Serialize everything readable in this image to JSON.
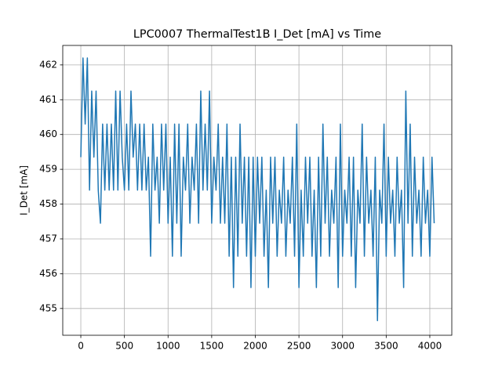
{
  "chart_data": {
    "type": "line",
    "title": "LPC0007 ThermalTest1B I_Det [mA] vs Time",
    "ylabel": "I_Det [mA]",
    "color": "#1f77b4",
    "grid": true,
    "xlim": [
      -207,
      4252
    ],
    "ylim": [
      454.23,
      462.56
    ],
    "xticks": [
      0,
      500,
      1000,
      1500,
      2000,
      2500,
      3000,
      3500,
      4000
    ],
    "yticks": [
      455,
      456,
      457,
      458,
      459,
      460,
      461,
      462
    ],
    "x": [
      0,
      25,
      50,
      75,
      100,
      125,
      150,
      175,
      200,
      225,
      250,
      275,
      300,
      325,
      350,
      375,
      400,
      425,
      450,
      475,
      500,
      525,
      550,
      575,
      600,
      625,
      650,
      675,
      700,
      725,
      750,
      775,
      800,
      825,
      850,
      875,
      900,
      925,
      950,
      975,
      1000,
      1025,
      1050,
      1075,
      1100,
      1125,
      1150,
      1175,
      1200,
      1225,
      1250,
      1275,
      1300,
      1325,
      1350,
      1375,
      1400,
      1425,
      1450,
      1475,
      1500,
      1525,
      1550,
      1575,
      1600,
      1625,
      1650,
      1675,
      1700,
      1725,
      1750,
      1775,
      1800,
      1825,
      1850,
      1875,
      1900,
      1925,
      1950,
      1975,
      2000,
      2025,
      2050,
      2075,
      2100,
      2125,
      2150,
      2175,
      2200,
      2225,
      2250,
      2275,
      2300,
      2325,
      2350,
      2375,
      2400,
      2425,
      2450,
      2475,
      2500,
      2525,
      2550,
      2575,
      2600,
      2625,
      2650,
      2675,
      2700,
      2725,
      2750,
      2775,
      2800,
      2825,
      2850,
      2875,
      2900,
      2925,
      2950,
      2975,
      3000,
      3025,
      3050,
      3075,
      3100,
      3125,
      3150,
      3175,
      3200,
      3225,
      3250,
      3275,
      3300,
      3325,
      3350,
      3375,
      3400,
      3425,
      3450,
      3475,
      3500,
      3525,
      3550,
      3575,
      3600,
      3625,
      3650,
      3675,
      3700,
      3725,
      3750,
      3775,
      3800,
      3825,
      3850,
      3875,
      3900,
      3925,
      3950,
      3975,
      4000,
      4025,
      4050
    ],
    "values": [
      459.35,
      462.2,
      460.3,
      462.2,
      458.4,
      461.25,
      459.35,
      461.25,
      458.4,
      457.45,
      460.3,
      458.4,
      460.3,
      458.4,
      460.3,
      458.4,
      461.25,
      458.4,
      461.25,
      459.35,
      458.4,
      460.3,
      458.4,
      461.25,
      459.35,
      460.3,
      458.4,
      460.3,
      458.4,
      460.3,
      458.4,
      459.35,
      456.5,
      460.3,
      458.4,
      459.35,
      457.45,
      460.3,
      458.4,
      460.3,
      457.45,
      459.35,
      456.5,
      460.3,
      457.45,
      460.3,
      456.5,
      459.35,
      458.4,
      460.3,
      457.45,
      459.35,
      458.4,
      460.3,
      457.45,
      461.25,
      458.4,
      460.3,
      458.4,
      461.25,
      457.45,
      459.35,
      458.4,
      460.3,
      457.45,
      459.35,
      457.45,
      460.3,
      456.5,
      459.35,
      455.6,
      459.35,
      456.5,
      460.3,
      457.45,
      459.35,
      456.5,
      459.35,
      455.6,
      459.35,
      456.5,
      459.35,
      457.45,
      459.35,
      456.5,
      458.4,
      455.6,
      459.35,
      457.45,
      459.35,
      456.5,
      458.4,
      457.45,
      459.35,
      456.5,
      458.4,
      457.45,
      459.35,
      456.5,
      460.3,
      455.6,
      458.4,
      456.5,
      459.35,
      457.45,
      459.35,
      456.5,
      458.4,
      455.6,
      459.35,
      456.5,
      460.3,
      457.45,
      459.35,
      456.5,
      458.4,
      457.45,
      459.35,
      455.6,
      460.3,
      456.5,
      458.4,
      457.45,
      459.35,
      456.5,
      459.35,
      455.6,
      458.4,
      457.45,
      460.3,
      456.5,
      459.35,
      457.45,
      458.4,
      456.5,
      459.35,
      454.65,
      458.4,
      457.45,
      460.3,
      456.5,
      459.35,
      457.45,
      458.4,
      456.5,
      459.35,
      457.45,
      458.4,
      455.6,
      461.25,
      457.45,
      460.3,
      456.5,
      459.35,
      457.45,
      458.4,
      456.5,
      459.35,
      457.45,
      458.4,
      456.5,
      459.35,
      457.45
    ]
  }
}
